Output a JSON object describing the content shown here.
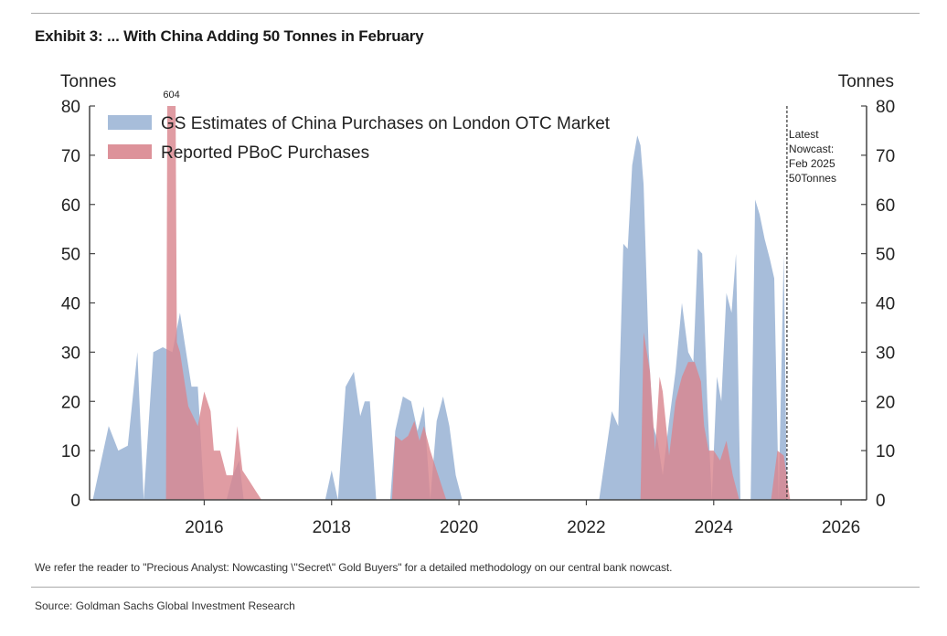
{
  "exhibit_title": "Exhibit 3: ... With China Adding 50 Tonnes in February",
  "footnote": "We refer the reader to \"Precious Analyst: Nowcasting \\\"Secret\\\" Gold Buyers\" for a detailed methodology on our central bank nowcast.",
  "source": "Source: Goldman Sachs Global Investment Research",
  "chart_data": {
    "type": "area",
    "y_unit_left": "Tonnes",
    "y_unit_right": "Tonnes",
    "ylim": [
      0,
      80
    ],
    "xlim": [
      2014.2,
      2026.4
    ],
    "x_ticks": [
      2016,
      2018,
      2020,
      2022,
      2024,
      2026
    ],
    "x_tick_labels": [
      "2016",
      "2018",
      "2020",
      "2022",
      "2024",
      "2026"
    ],
    "y_ticks": [
      0,
      10,
      20,
      30,
      40,
      50,
      60,
      70,
      80
    ],
    "y_tick_labels": [
      "0",
      "10",
      "20",
      "30",
      "40",
      "50",
      "60",
      "70",
      "80"
    ],
    "legend_placement": "top-left",
    "series": [
      {
        "name": "GS Estimates of China Purchases on London OTC Market",
        "color": "#9db6d6",
        "x": [
          2014.25,
          2014.5,
          2014.65,
          2014.8,
          2014.95,
          2015.05,
          2015.2,
          2015.35,
          2015.5,
          2015.62,
          2015.8,
          2015.9,
          2016.0,
          2016.2,
          2016.35,
          2016.45,
          2016.55,
          2016.62,
          2016.72,
          2016.82,
          2016.92,
          2017.05,
          2017.2,
          2017.4,
          2017.6,
          2017.75,
          2017.9,
          2018.0,
          2018.1,
          2018.22,
          2018.35,
          2018.45,
          2018.52,
          2018.6,
          2018.7,
          2018.8,
          2018.92,
          2019.0,
          2019.12,
          2019.25,
          2019.35,
          2019.45,
          2019.55,
          2019.65,
          2019.75,
          2019.85,
          2019.95,
          2020.05,
          2020.12,
          2020.2,
          2020.4,
          2021.0,
          2021.6,
          2022.2,
          2022.4,
          2022.5,
          2022.58,
          2022.65,
          2022.72,
          2022.8,
          2022.85,
          2022.9,
          2022.98,
          2023.05,
          2023.12,
          2023.2,
          2023.3,
          2023.4,
          2023.5,
          2023.6,
          2023.68,
          2023.75,
          2023.82,
          2023.9,
          2023.97,
          2024.05,
          2024.12,
          2024.2,
          2024.28,
          2024.35,
          2024.42,
          2024.5,
          2024.58,
          2024.65,
          2024.72,
          2024.8,
          2024.88,
          2024.95,
          2025.02,
          2025.1,
          2025.15,
          2026.4
        ],
        "values": [
          0,
          15,
          10,
          11,
          30,
          0,
          30,
          31,
          30,
          38,
          23,
          23,
          0,
          0,
          0,
          5,
          8,
          0,
          0,
          0,
          0,
          0,
          0,
          0,
          0,
          0,
          0,
          6,
          0,
          23,
          26,
          17,
          20,
          20,
          0,
          0,
          0,
          14,
          21,
          20,
          14,
          19,
          0,
          16,
          21,
          15,
          5,
          0,
          0,
          0,
          0,
          0,
          0,
          0,
          18,
          15,
          52,
          51,
          68,
          74,
          72,
          64,
          30,
          15,
          12,
          5,
          16,
          26,
          40,
          30,
          28,
          51,
          50,
          20,
          0,
          25,
          20,
          42,
          38,
          50,
          0,
          0,
          0,
          61,
          58,
          53,
          49,
          45,
          0,
          50,
          0,
          0
        ]
      },
      {
        "name": "Reported PBoC Purchases",
        "color": "#d9868f",
        "x": [
          2015.4,
          2015.42,
          2015.55,
          2015.57,
          2015.62,
          2015.75,
          2015.9,
          2016.0,
          2016.1,
          2016.15,
          2016.25,
          2016.35,
          2016.45,
          2016.52,
          2016.6,
          2016.7,
          2016.8,
          2016.9,
          2017.0,
          2018.95,
          2019.0,
          2019.1,
          2019.2,
          2019.3,
          2019.38,
          2019.45,
          2019.55,
          2019.65,
          2019.75,
          2019.8,
          2022.85,
          2022.9,
          2023.0,
          2023.08,
          2023.15,
          2023.2,
          2023.3,
          2023.4,
          2023.5,
          2023.6,
          2023.7,
          2023.8,
          2023.85,
          2023.92,
          2024.0,
          2024.1,
          2024.2,
          2024.3,
          2024.4,
          2024.45,
          2024.9,
          2025.0,
          2025.1,
          2025.2
        ],
        "values": [
          0,
          80,
          80,
          32,
          30,
          19,
          15,
          22,
          18,
          10,
          10,
          5,
          5,
          15,
          6,
          4,
          2,
          0,
          0,
          0,
          13,
          12,
          13,
          16,
          12,
          15,
          10,
          6,
          2,
          0,
          0,
          34,
          26,
          10,
          25,
          22,
          9,
          20,
          25,
          28,
          28,
          24,
          15,
          10,
          10,
          8,
          12,
          5,
          0,
          0,
          0,
          10,
          9,
          0
        ]
      }
    ],
    "annotations": {
      "spike_label": "604",
      "nowcast_x": 2025.15,
      "nowcast_lines": [
        "Latest",
        "Nowcast:",
        "Feb 2025",
        "50Tonnes"
      ]
    }
  }
}
